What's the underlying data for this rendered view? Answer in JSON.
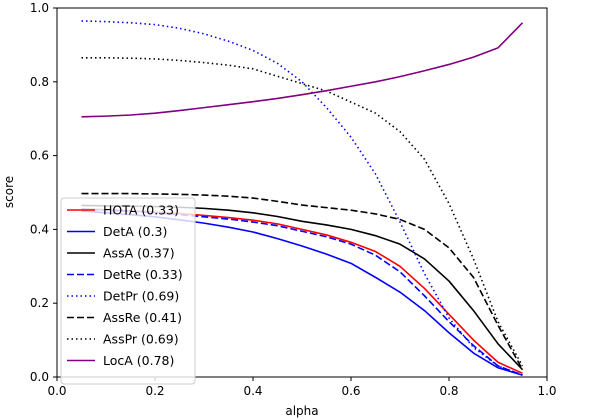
{
  "chart_data": {
    "type": "line",
    "title": "",
    "xlabel": "alpha",
    "ylabel": "score",
    "xlim": [
      0.0,
      1.0
    ],
    "ylim": [
      0.0,
      1.0
    ],
    "x_ticks": [
      "0.0",
      "0.2",
      "0.4",
      "0.6",
      "0.8",
      "1.0"
    ],
    "y_ticks": [
      "0.0",
      "0.2",
      "0.4",
      "0.6",
      "0.8",
      "1.0"
    ],
    "grid": false,
    "legend_position": "lower-left",
    "x": [
      0.05,
      0.1,
      0.15,
      0.2,
      0.25,
      0.3,
      0.35,
      0.4,
      0.45,
      0.5,
      0.55,
      0.6,
      0.65,
      0.7,
      0.75,
      0.8,
      0.85,
      0.9,
      0.95
    ],
    "series": [
      {
        "name": "HOTA (0.33)",
        "color": "#ff0000",
        "dash": "solid",
        "values": [
          0.455,
          0.453,
          0.45,
          0.447,
          0.443,
          0.438,
          0.432,
          0.425,
          0.415,
          0.4,
          0.385,
          0.365,
          0.34,
          0.3,
          0.24,
          0.17,
          0.1,
          0.04,
          0.01
        ]
      },
      {
        "name": "DetA (0.3)",
        "color": "#0000ff",
        "dash": "solid",
        "values": [
          0.45,
          0.445,
          0.44,
          0.434,
          0.426,
          0.417,
          0.406,
          0.393,
          0.375,
          0.355,
          0.333,
          0.308,
          0.27,
          0.23,
          0.18,
          0.12,
          0.065,
          0.025,
          0.005
        ]
      },
      {
        "name": "AssA (0.37)",
        "color": "#000000",
        "dash": "solid",
        "values": [
          0.465,
          0.464,
          0.463,
          0.462,
          0.46,
          0.457,
          0.452,
          0.445,
          0.435,
          0.422,
          0.412,
          0.4,
          0.383,
          0.36,
          0.32,
          0.26,
          0.18,
          0.09,
          0.02
        ]
      },
      {
        "name": "DetRe (0.33)",
        "color": "#0000ff",
        "dash": "dashed",
        "values": [
          0.455,
          0.452,
          0.449,
          0.445,
          0.44,
          0.434,
          0.428,
          0.42,
          0.41,
          0.395,
          0.38,
          0.36,
          0.33,
          0.285,
          0.22,
          0.15,
          0.085,
          0.03,
          0.005
        ]
      },
      {
        "name": "DetPr (0.69)",
        "color": "#0000ff",
        "dash": "dotted",
        "values": [
          0.965,
          0.963,
          0.96,
          0.955,
          0.945,
          0.93,
          0.91,
          0.885,
          0.85,
          0.8,
          0.73,
          0.65,
          0.55,
          0.42,
          0.28,
          0.16,
          0.08,
          0.03,
          0.005
        ]
      },
      {
        "name": "AssRe (0.41)",
        "color": "#000000",
        "dash": "dashed",
        "values": [
          0.497,
          0.497,
          0.497,
          0.496,
          0.495,
          0.493,
          0.49,
          0.485,
          0.476,
          0.466,
          0.459,
          0.452,
          0.442,
          0.427,
          0.4,
          0.35,
          0.27,
          0.14,
          0.02
        ]
      },
      {
        "name": "AssPr (0.69)",
        "color": "#000000",
        "dash": "dotted",
        "values": [
          0.865,
          0.865,
          0.864,
          0.862,
          0.858,
          0.852,
          0.845,
          0.835,
          0.815,
          0.795,
          0.775,
          0.745,
          0.715,
          0.665,
          0.59,
          0.47,
          0.32,
          0.15,
          0.03
        ]
      },
      {
        "name": "LocA (0.78)",
        "color": "#800080",
        "dash": "solid",
        "values": [
          0.705,
          0.707,
          0.71,
          0.715,
          0.722,
          0.73,
          0.738,
          0.746,
          0.755,
          0.765,
          0.776,
          0.788,
          0.8,
          0.814,
          0.83,
          0.847,
          0.867,
          0.892,
          0.96
        ]
      }
    ]
  }
}
